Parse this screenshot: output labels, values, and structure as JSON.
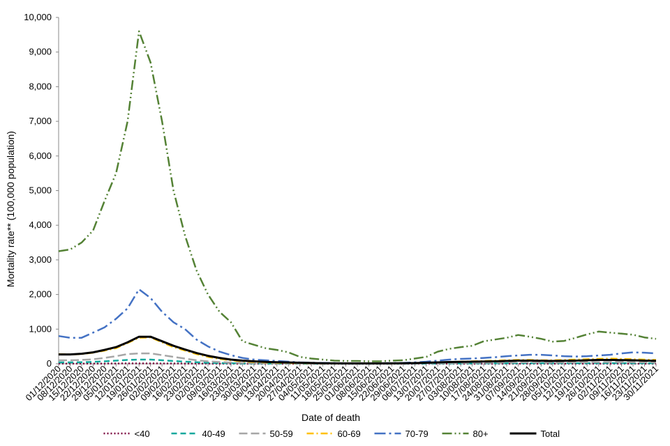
{
  "chart_data": {
    "type": "line",
    "y_label": "Mortality rate** (100,000 population)",
    "x_label": "Date of death",
    "categories": [
      "01/12/2020",
      "08/12/2020",
      "15/12/2020",
      "22/12/2020",
      "29/12/2020",
      "05/01/2021",
      "12/01/2021",
      "19/01/2021",
      "26/01/2021",
      "02/02/2021",
      "09/02/2021",
      "16/02/2021",
      "23/02/2021",
      "02/03/2021",
      "09/03/2021",
      "16/03/2021",
      "23/03/2021",
      "30/03/2021",
      "06/04/2021",
      "13/04/2021",
      "20/04/2021",
      "27/04/2021",
      "04/05/2021",
      "11/05/2021",
      "18/05/2021",
      "25/05/2021",
      "01/06/2021",
      "08/06/2021",
      "15/06/2021",
      "22/06/2021",
      "29/06/2021",
      "06/07/2021",
      "13/07/2021",
      "20/07/2021",
      "27/07/2021",
      "03/08/2021",
      "10/08/2021",
      "17/08/2021",
      "24/08/2021",
      "31/08/2021",
      "07/09/2021",
      "14/09/2021",
      "21/09/2021",
      "28/09/2021",
      "05/10/2021",
      "12/10/2021",
      "19/10/2021",
      "26/10/2021",
      "02/11/2021",
      "09/11/2021",
      "16/11/2021",
      "23/11/2021",
      "30/11/2021"
    ],
    "ylim": [
      0,
      10000
    ],
    "yticks": [
      0,
      {
        "value": 1000,
        "label": "1,000"
      },
      {
        "value": 2000,
        "label": "2,000"
      },
      {
        "value": 3000,
        "label": "3,000"
      },
      {
        "value": 4000,
        "label": "4,000"
      },
      {
        "value": 5000,
        "label": "5,000"
      },
      {
        "value": 6000,
        "label": "6,000"
      },
      {
        "value": 7000,
        "label": "7,000"
      },
      {
        "value": 8000,
        "label": "8,000"
      },
      {
        "value": 9000,
        "label": "9,000"
      },
      {
        "value": 10000,
        "label": "10,000"
      }
    ],
    "legend": "bottom",
    "series": [
      {
        "name": "<40",
        "color": "#7b003f",
        "dash": "2 3",
        "width": 2.5,
        "values": [
          5,
          5,
          5,
          6,
          7,
          8,
          10,
          11,
          11,
          9,
          8,
          6,
          5,
          4,
          3,
          2,
          2,
          2,
          1,
          1,
          1,
          1,
          1,
          1,
          1,
          1,
          1,
          1,
          1,
          1,
          1,
          1,
          1,
          1,
          2,
          2,
          2,
          2,
          2,
          2,
          2,
          2,
          2,
          2,
          2,
          2,
          2,
          2,
          2,
          2,
          2,
          2,
          2
        ]
      },
      {
        "name": "40-49",
        "color": "#12a89d",
        "dash": "8 5",
        "width": 2.5,
        "values": [
          40,
          40,
          45,
          55,
          70,
          90,
          110,
          120,
          120,
          100,
          80,
          60,
          45,
          30,
          20,
          15,
          10,
          8,
          6,
          5,
          4,
          3,
          2,
          2,
          2,
          2,
          2,
          2,
          2,
          2,
          3,
          4,
          5,
          7,
          9,
          10,
          11,
          12,
          13,
          14,
          15,
          15,
          14,
          14,
          15,
          16,
          17,
          18,
          19,
          18,
          17,
          16,
          15
        ]
      },
      {
        "name": "50-59",
        "color": "#a6a6a6",
        "dash": "12 5",
        "width": 2.5,
        "values": [
          100,
          100,
          110,
          130,
          170,
          220,
          280,
          300,
          300,
          250,
          200,
          150,
          100,
          70,
          50,
          35,
          25,
          20,
          15,
          12,
          10,
          8,
          6,
          5,
          4,
          4,
          4,
          4,
          4,
          5,
          6,
          8,
          12,
          16,
          20,
          24,
          28,
          30,
          35,
          40,
          42,
          42,
          40,
          38,
          40,
          42,
          45,
          48,
          50,
          48,
          45,
          42,
          40
        ]
      },
      {
        "name": "60-69",
        "color": "#ffc000",
        "dash": "10 4 2 4",
        "width": 2.5,
        "values": [
          280,
          270,
          280,
          320,
          380,
          450,
          600,
          750,
          760,
          620,
          480,
          380,
          280,
          200,
          140,
          100,
          70,
          50,
          40,
          30,
          25,
          20,
          15,
          10,
          8,
          8,
          8,
          8,
          8,
          10,
          15,
          20,
          30,
          40,
          50,
          60,
          70,
          80,
          90,
          100,
          110,
          110,
          100,
          100,
          110,
          120,
          130,
          140,
          150,
          140,
          130,
          120,
          110
        ]
      },
      {
        "name": "70-79",
        "color": "#4472c4",
        "dash": "16 5 3 5",
        "width": 2.5,
        "values": [
          800,
          750,
          750,
          900,
          1050,
          1300,
          1600,
          2150,
          1900,
          1500,
          1200,
          1000,
          700,
          500,
          350,
          250,
          170,
          120,
          100,
          80,
          60,
          40,
          30,
          25,
          20,
          15,
          15,
          15,
          15,
          20,
          25,
          40,
          60,
          90,
          120,
          140,
          150,
          170,
          190,
          220,
          240,
          260,
          260,
          240,
          220,
          210,
          220,
          240,
          260,
          300,
          330,
          320,
          300
        ]
      },
      {
        "name": "80+",
        "color": "#548235",
        "dash": "14 4 2 4 2 4",
        "width": 2.5,
        "values": [
          3250,
          3300,
          3500,
          3850,
          4700,
          5500,
          7000,
          9600,
          8700,
          7000,
          5000,
          3700,
          2700,
          2000,
          1500,
          1200,
          650,
          550,
          450,
          400,
          330,
          200,
          150,
          120,
          90,
          80,
          80,
          70,
          70,
          90,
          100,
          150,
          200,
          350,
          430,
          480,
          520,
          650,
          700,
          750,
          830,
          780,
          720,
          640,
          660,
          750,
          850,
          930,
          900,
          870,
          840,
          760,
          720
        ]
      },
      {
        "name": "Total",
        "color": "#000000",
        "dash": "none",
        "width": 3,
        "values": [
          270,
          270,
          290,
          330,
          400,
          480,
          620,
          780,
          780,
          650,
          520,
          410,
          310,
          230,
          170,
          120,
          90,
          70,
          55,
          45,
          38,
          30,
          22,
          15,
          12,
          10,
          10,
          10,
          10,
          12,
          15,
          20,
          30,
          40,
          50,
          55,
          60,
          65,
          70,
          80,
          90,
          90,
          85,
          80,
          85,
          90,
          100,
          110,
          110,
          105,
          100,
          90,
          85
        ]
      }
    ]
  }
}
